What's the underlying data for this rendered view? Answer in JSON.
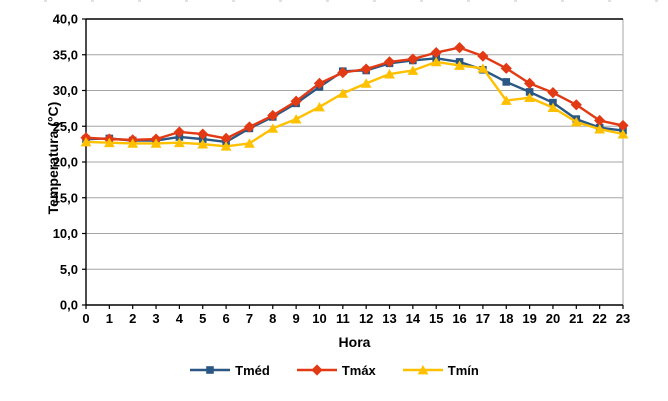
{
  "page": {
    "background": "#FFFFFF"
  },
  "chart_data": {
    "type": "line",
    "title": "",
    "xlabel": "Hora",
    "ylabel": "Temperatura (°C)",
    "x_tick_labels": [
      "0",
      "1",
      "2",
      "3",
      "4",
      "5",
      "6",
      "7",
      "8",
      "9",
      "10",
      "11",
      "12",
      "13",
      "14",
      "15",
      "16",
      "17",
      "18",
      "19",
      "20",
      "21",
      "22",
      "23"
    ],
    "ylim": [
      0,
      40
    ],
    "yticks": [
      {
        "value": 40,
        "label": "40,0"
      },
      {
        "value": 35,
        "label": "35,0"
      },
      {
        "value": 30,
        "label": "30,0"
      },
      {
        "value": 25,
        "label": "25,0"
      },
      {
        "value": 20,
        "label": "20,0"
      },
      {
        "value": 15,
        "label": "15,0"
      },
      {
        "value": 10,
        "label": "10,0"
      },
      {
        "value": 5,
        "label": "5,0"
      },
      {
        "value": 0,
        "label": "0,0"
      }
    ],
    "grid": true,
    "legend_position": "bottom",
    "axis_color": "#000000",
    "gridline_color": "#A6A6A6",
    "series": [
      {
        "id": "tmed",
        "name": "Tméd",
        "color": "#2A5784",
        "marker": "square",
        "values": [
          23.2,
          23.3,
          23.0,
          23.0,
          23.5,
          23.2,
          22.8,
          24.7,
          26.3,
          28.2,
          30.5,
          32.7,
          32.8,
          33.8,
          34.2,
          34.5,
          34.0,
          32.9,
          31.2,
          29.8,
          28.3,
          26.0,
          24.8,
          24.4
        ]
      },
      {
        "id": "tmax",
        "name": "Tmáx",
        "color": "#E23A14",
        "marker": "diamond",
        "values": [
          23.4,
          23.2,
          23.1,
          23.2,
          24.2,
          23.9,
          23.3,
          24.9,
          26.5,
          28.5,
          31.0,
          32.5,
          33.0,
          34.0,
          34.4,
          35.3,
          36.0,
          34.8,
          33.1,
          31.0,
          29.7,
          28.0,
          25.8,
          25.1
        ]
      },
      {
        "id": "tmin",
        "name": "Tmín",
        "color": "#FFC000",
        "marker": "triangle",
        "values": [
          22.8,
          22.7,
          22.6,
          22.6,
          22.7,
          22.5,
          22.2,
          22.6,
          24.7,
          26.0,
          27.7,
          29.6,
          31.0,
          32.3,
          32.8,
          34.0,
          33.5,
          33.1,
          28.6,
          29.0,
          27.6,
          25.6,
          24.6,
          23.9
        ]
      }
    ]
  }
}
